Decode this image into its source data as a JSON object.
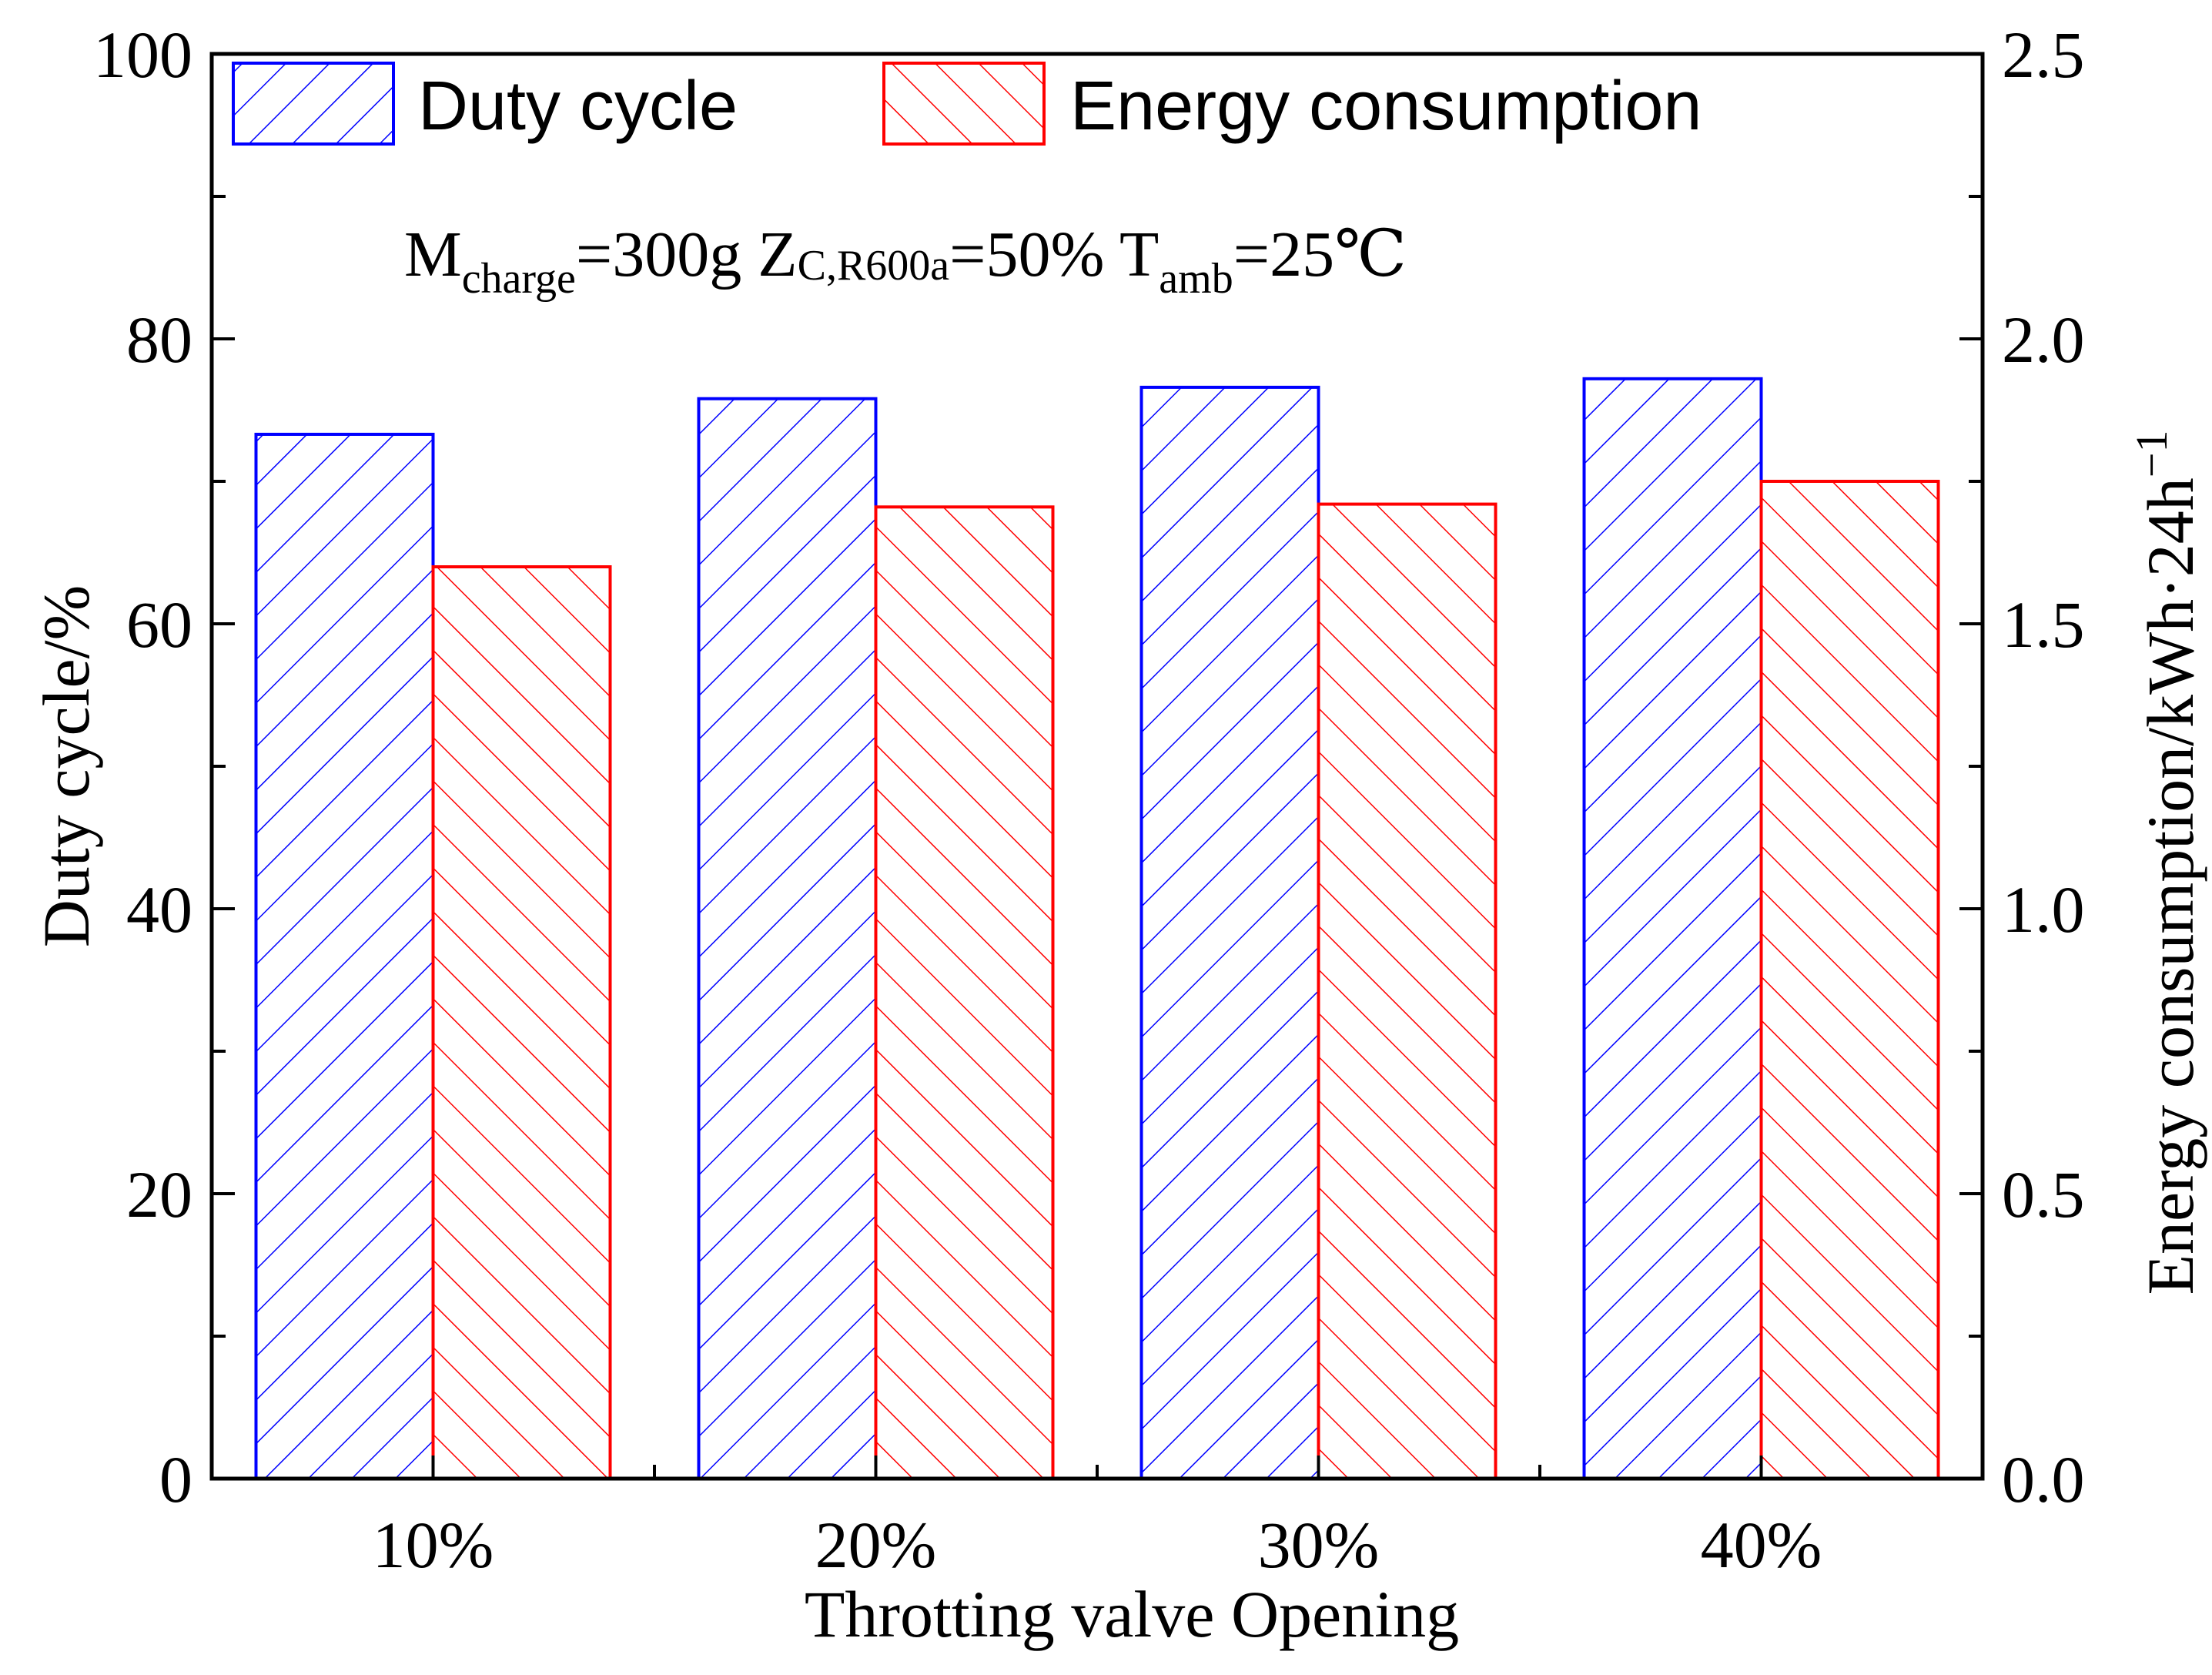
{
  "chart_data": {
    "type": "bar",
    "categories": [
      "10%",
      "20%",
      "30%",
      "40%"
    ],
    "series": [
      {
        "name": "Duty cycle",
        "axis": "left",
        "color": "#0000ff",
        "hatch": "forward",
        "values": [
          73.3,
          75.8,
          76.6,
          77.2
        ]
      },
      {
        "name": "Energy consumption",
        "axis": "right",
        "color": "#ff0000",
        "hatch": "backward",
        "values": [
          1.6,
          1.705,
          1.71,
          1.75
        ]
      }
    ],
    "xlabel": "Throtting valve Opening",
    "ylabel_left": "Duty cycle/%",
    "ylabel_right": "Energy consumption/kWh·24h",
    "ylabel_right_sup": "−1",
    "ylim_left": [
      0,
      100
    ],
    "ylim_right": [
      0,
      2.5
    ],
    "yticks_left": [
      "0",
      "20",
      "40",
      "60",
      "80",
      "100"
    ],
    "yticks_right": [
      "0.0",
      "0.5",
      "1.0",
      "1.5",
      "2.0",
      "2.5"
    ],
    "legend_position": "top",
    "grid": false,
    "annotation": {
      "m": "M",
      "m_sub": "charge",
      "m_val": "=300g ",
      "z": "Z",
      "z_sub": "C,R600a",
      "z_val": "=50% ",
      "t": "T",
      "t_sub": "amb",
      "t_val": "=25℃"
    }
  }
}
